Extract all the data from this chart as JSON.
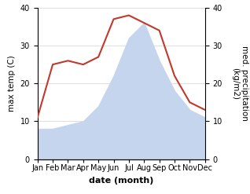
{
  "months": [
    "Jan",
    "Feb",
    "Mar",
    "Apr",
    "May",
    "Jun",
    "Jul",
    "Aug",
    "Sep",
    "Oct",
    "Nov",
    "Dec"
  ],
  "temperature": [
    11,
    25,
    26,
    25,
    27,
    37,
    38,
    36,
    34,
    22,
    15,
    13
  ],
  "precipitation": [
    8,
    8,
    9,
    10,
    14,
    22,
    32,
    36,
    26,
    18,
    13,
    11
  ],
  "temp_color": "#c0392b",
  "precip_fill_color": "#c5d5ed",
  "ylim": [
    0,
    40
  ],
  "ylabel_left": "max temp (C)",
  "ylabel_right": "med. precipitation\n(kg/m2)",
  "xlabel": "date (month)",
  "grid_color": "#d0d0d0",
  "background_color": "#ffffff",
  "xlabel_fontsize": 8,
  "ylabel_fontsize": 7.5,
  "tick_fontsize": 7,
  "line_width": 1.5
}
